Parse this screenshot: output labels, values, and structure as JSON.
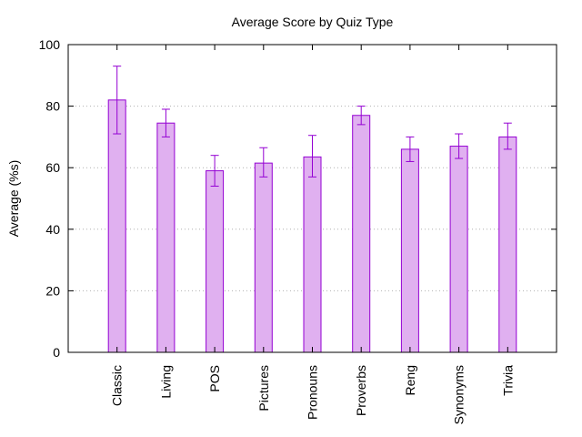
{
  "chart_data": {
    "type": "bar",
    "title": "Average Score by Quiz Type",
    "xlabel": "",
    "ylabel": "Average (%s)",
    "ylim": [
      0,
      100
    ],
    "yticks": [
      0,
      20,
      40,
      60,
      80,
      100
    ],
    "grid": "horizontal dotted",
    "categories": [
      "Classic",
      "Living",
      "POS",
      "Pictures",
      "Pronouns",
      "Proverbs",
      "Reng",
      "Synonyms",
      "Trivia"
    ],
    "values": [
      82,
      74.5,
      59,
      61.5,
      63.5,
      77,
      66,
      67,
      70
    ],
    "error_low": [
      71,
      70,
      54,
      57,
      57,
      74,
      62,
      63,
      66
    ],
    "error_high": [
      93,
      79,
      64,
      66.5,
      70.5,
      80,
      70,
      71,
      74.5
    ],
    "colors": {
      "fill": "#e0b0f0",
      "stroke": "#9400d3",
      "grid": "#b0b0b0"
    }
  }
}
